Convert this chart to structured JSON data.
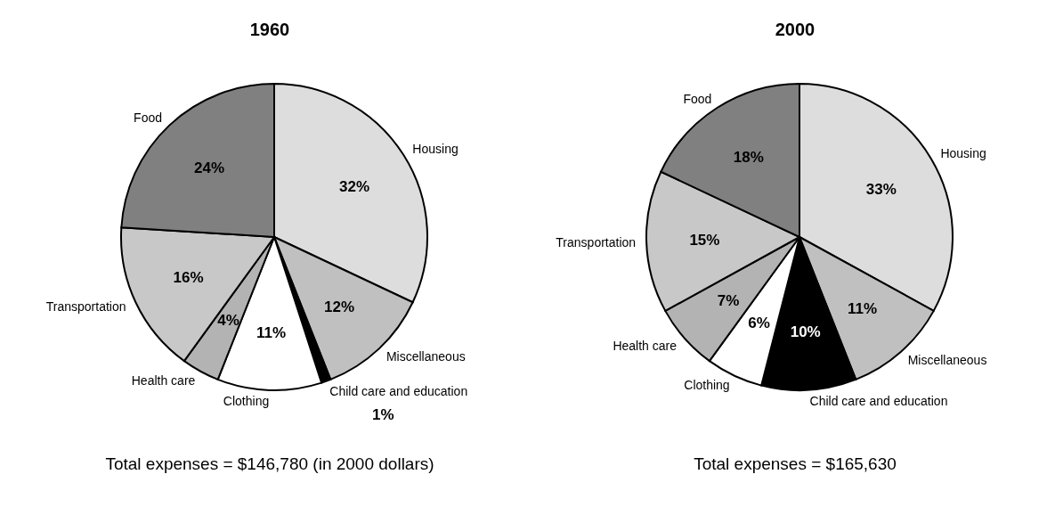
{
  "chart_data": [
    {
      "type": "pie",
      "title": "1960",
      "categories": [
        "Housing",
        "Miscellaneous",
        "Child care and education",
        "Clothing",
        "Health care",
        "Transportation",
        "Food"
      ],
      "values": [
        32,
        12,
        1,
        11,
        4,
        16,
        24
      ],
      "value_labels": [
        "32%",
        "12%",
        "1%",
        "11%",
        "4%",
        "16%",
        "24%"
      ],
      "colors": [
        "#dddddd",
        "#c0c0c0",
        "#000000",
        "#ffffff",
        "#b3b3b3",
        "#c8c8c8",
        "#808080"
      ],
      "annotations": [
        "Total expenses = $146,780 (in 2000 dollars)"
      ]
    },
    {
      "type": "pie",
      "title": "2000",
      "categories": [
        "Housing",
        "Miscellaneous",
        "Child care and education",
        "Clothing",
        "Health care",
        "Transportation",
        "Food"
      ],
      "values": [
        33,
        11,
        10,
        6,
        7,
        15,
        18
      ],
      "value_labels": [
        "33%",
        "11%",
        "10%",
        "6%",
        "7%",
        "15%",
        "18%"
      ],
      "colors": [
        "#dddddd",
        "#c0c0c0",
        "#000000",
        "#ffffff",
        "#b3b3b3",
        "#c8c8c8",
        "#808080"
      ],
      "annotations": [
        "Total expenses = $165,630"
      ]
    }
  ]
}
